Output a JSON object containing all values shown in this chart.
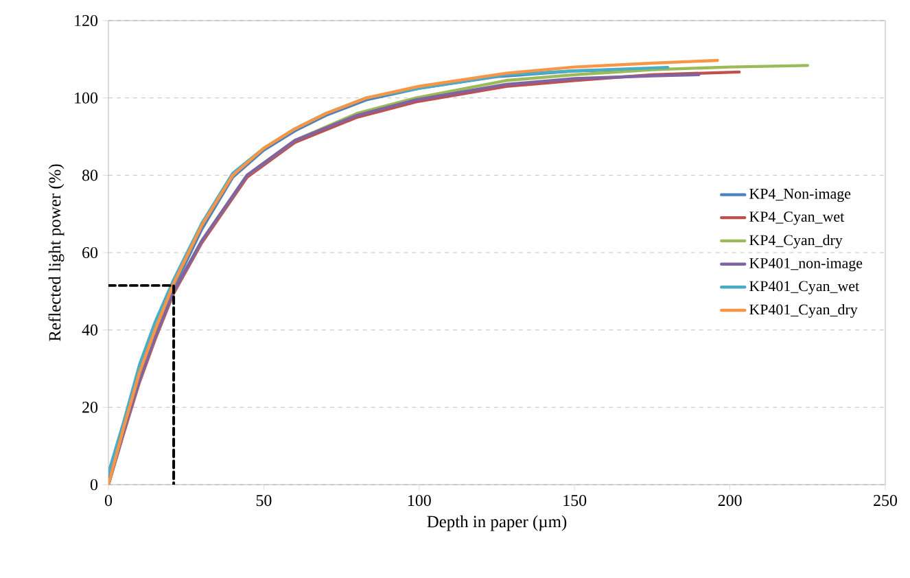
{
  "chart_data": {
    "type": "line",
    "xlabel": "Depth in paper (µm)",
    "ylabel": "Reflected light power (%)",
    "xlim": [
      0,
      250
    ],
    "xticks": [
      0,
      50,
      100,
      150,
      200,
      250
    ],
    "ylim": [
      0,
      120
    ],
    "yticks": [
      0,
      20,
      40,
      60,
      80,
      100,
      120
    ],
    "grid": "y",
    "legend": "right",
    "marker": "none",
    "series": [
      {
        "name": "KP4_Non-image",
        "color": "#4f81bd",
        "x": [
          0,
          5,
          10,
          15,
          21,
          30,
          40,
          50,
          60,
          70,
          83,
          100,
          125,
          150,
          175
        ],
        "values": [
          1,
          14,
          27.5,
          38.5,
          51,
          66,
          79.5,
          86.5,
          91.5,
          95.5,
          99.5,
          102.5,
          105.5,
          107,
          107.5
        ]
      },
      {
        "name": "KP4_Cyan_wet",
        "color": "#c0504d",
        "x": [
          0,
          5,
          10,
          15,
          21,
          30,
          44.6,
          60,
          80,
          99,
          128,
          150,
          175,
          203
        ],
        "values": [
          0,
          13.5,
          26.5,
          37.5,
          49.5,
          62.5,
          79.5,
          88.5,
          95,
          99,
          103,
          104.5,
          106,
          106.7
        ]
      },
      {
        "name": "KP4_Cyan_dry",
        "color": "#9bbb59",
        "x": [
          0,
          5,
          10,
          15,
          21,
          30,
          44.6,
          60,
          80,
          99,
          128,
          150,
          175,
          200,
          225
        ],
        "values": [
          0,
          14,
          27,
          38,
          50,
          63,
          80,
          89,
          96,
          100,
          104.5,
          106,
          107.3,
          108,
          108.4
        ]
      },
      {
        "name": "KP401_non-image",
        "color": "#8064a2",
        "x": [
          0,
          5,
          10,
          15,
          21,
          30,
          44.6,
          60,
          80,
          99,
          128,
          150,
          175,
          190
        ],
        "values": [
          0,
          14,
          27,
          38,
          50,
          63,
          80,
          89,
          95.5,
          99.5,
          103.5,
          105,
          105.7,
          106
        ]
      },
      {
        "name": "KP401_Cyan_wet",
        "color": "#4bacc6",
        "x": [
          0,
          5,
          10,
          15,
          21,
          30,
          40,
          50,
          60,
          70,
          83,
          100,
          128,
          150,
          180
        ],
        "values": [
          3,
          16.5,
          31,
          42,
          53,
          67.5,
          80.5,
          87,
          92,
          96,
          100,
          102.5,
          106,
          107,
          107.9
        ]
      },
      {
        "name": "KP401_Cyan_dry",
        "color": "#f79646",
        "x": [
          0,
          5,
          10,
          15,
          21,
          30,
          40,
          50,
          60,
          70,
          83,
          100,
          128,
          150,
          175,
          196
        ],
        "values": [
          0,
          15,
          29,
          40,
          52,
          67,
          80,
          87,
          92,
          96,
          100,
          103,
          106.4,
          108,
          109,
          109.7
        ]
      },
      {
        "color": "#000000",
        "line_style": "dashed",
        "x": [
          0,
          21,
          21
        ],
        "values": [
          51.5,
          51.5,
          0
        ]
      }
    ]
  }
}
